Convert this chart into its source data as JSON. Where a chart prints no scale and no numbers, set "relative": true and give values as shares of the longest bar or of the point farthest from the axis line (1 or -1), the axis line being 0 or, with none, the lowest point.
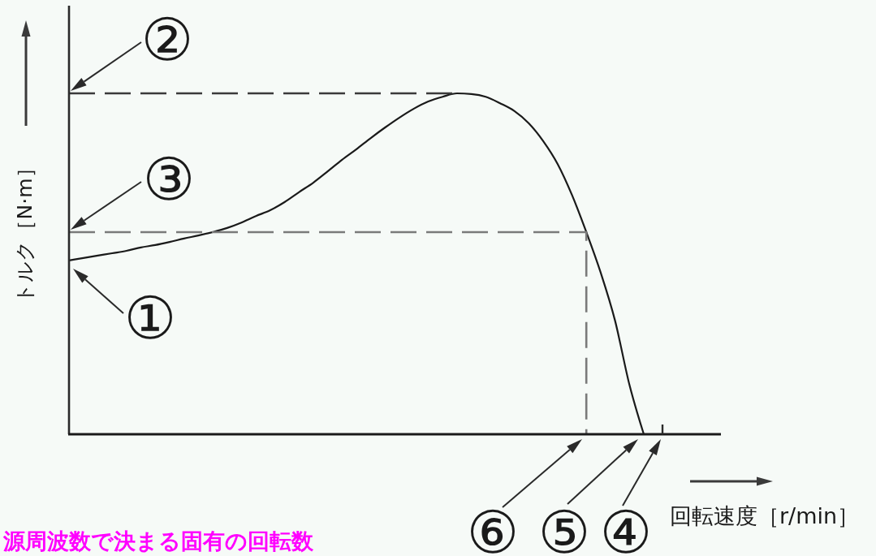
{
  "chart_data": {
    "type": "line",
    "relative": true,
    "xlabel": "回転速度［r/min］",
    "ylabel": "トルク［N·m］",
    "categories": [
      null,
      null,
      null,
      null,
      null,
      null,
      null,
      null,
      null,
      null,
      null,
      null,
      null,
      null,
      null,
      null,
      null,
      null,
      null,
      null,
      null,
      null,
      null,
      null,
      null,
      null,
      null,
      null,
      null,
      null,
      null,
      null,
      null,
      null,
      null,
      null,
      null,
      null,
      null,
      null,
      null,
      null,
      null,
      null,
      null,
      null
    ],
    "series": [
      {
        "color": "#1a1a1a",
        "line_style": "solid",
        "values": [
          0.51,
          0.517,
          0.524,
          0.531,
          0.538,
          0.548,
          0.555,
          0.564,
          0.574,
          0.583,
          0.593,
          0.605,
          0.621,
          0.64,
          0.657,
          0.681,
          0.71,
          0.738,
          0.771,
          0.805,
          0.836,
          0.869,
          0.9,
          0.929,
          0.955,
          0.976,
          0.99,
          1,
          0.998,
          0.99,
          0.971,
          0.948,
          0.912,
          0.86,
          0.793,
          0.702,
          0.593,
          0.474,
          0.333,
          0.145,
          0,
          null,
          null,
          null,
          null,
          null
        ]
      },
      {
        "type": "line",
        "color": "#3a3a3a",
        "line_style": "dashed",
        "values": [
          1,
          1,
          1,
          1,
          1,
          1,
          1,
          1,
          1,
          1,
          1,
          1,
          1,
          1,
          1,
          1,
          1,
          1,
          1,
          1,
          1,
          1,
          1,
          1,
          1,
          1,
          1,
          1,
          null,
          null,
          null,
          null,
          null,
          null,
          null,
          null,
          null,
          null,
          null,
          null,
          null,
          null,
          null,
          null,
          null,
          null
        ]
      },
      {
        "type": "step",
        "color": "#7a7a7a",
        "line_style": "dashed",
        "values": [
          0.593,
          0.593,
          0.593,
          0.593,
          0.593,
          0.593,
          0.593,
          0.593,
          0.593,
          0.593,
          0.593,
          0.593,
          0.593,
          0.593,
          0.593,
          0.593,
          0.593,
          0.593,
          0.593,
          0.593,
          0.593,
          0.593,
          0.593,
          0.593,
          0.593,
          0.593,
          0.593,
          0.593,
          0.593,
          0.593,
          0.593,
          0.593,
          0.593,
          0.593,
          0.593,
          0.593,
          0,
          null,
          null,
          null,
          null,
          null,
          null,
          null,
          null,
          null
        ]
      }
    ],
    "annotations": [
      "①",
      {
        "text": "②",
        "y": 1
      },
      {
        "text": "③",
        "y": 0.593
      },
      "④",
      "⑤",
      "⑥",
      "源周波数で決まる固有の回転数"
    ]
  }
}
